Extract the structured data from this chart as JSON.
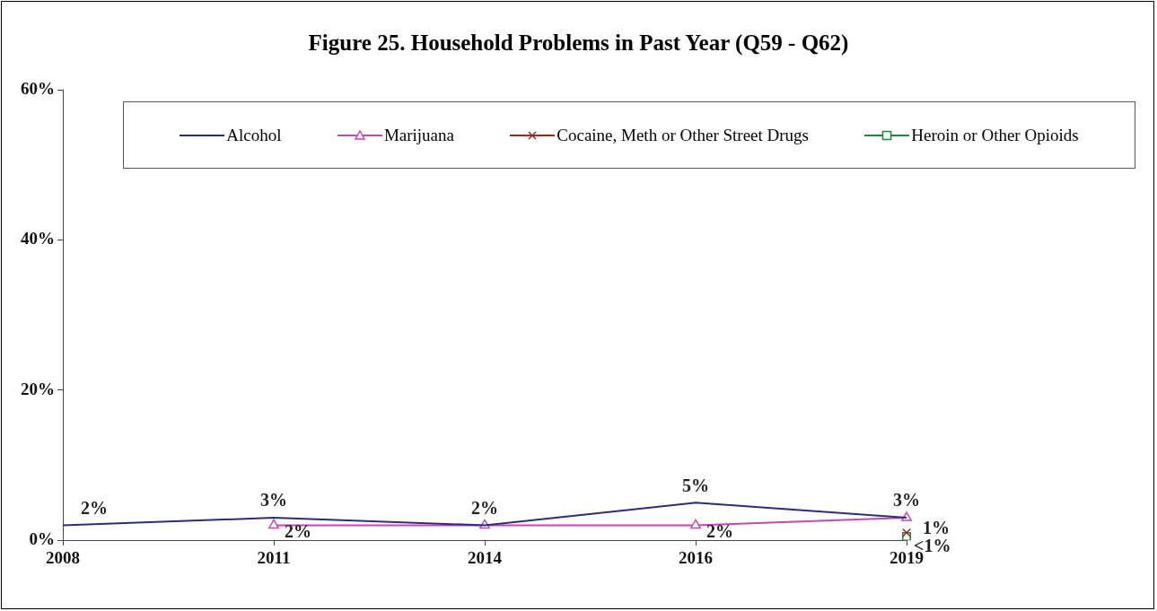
{
  "chart_data": {
    "type": "line",
    "title": "Figure 25. Household Problems in Past Year (Q59 - Q62)",
    "categories": [
      "2008",
      "2011",
      "2014",
      "2016",
      "2019"
    ],
    "ylim": [
      0,
      60
    ],
    "yticks": [
      {
        "value": 0,
        "label": "0%"
      },
      {
        "value": 20,
        "label": "20%"
      },
      {
        "value": 40,
        "label": "40%"
      },
      {
        "value": 60,
        "label": "60%"
      }
    ],
    "grid": false,
    "legend": "top",
    "series": [
      {
        "name": "Alcohol",
        "color": "#2b2d7c",
        "marker": "none",
        "values": [
          2,
          3,
          2,
          5,
          3
        ],
        "value_labels": [
          "2%",
          "3%",
          "2%",
          "5%",
          "3%"
        ]
      },
      {
        "name": "Marijuana",
        "color": "#c04ab0",
        "marker": "triangle",
        "values": [
          null,
          2,
          2,
          2,
          3
        ],
        "value_labels": [
          null,
          "2%",
          null,
          "2%",
          null
        ]
      },
      {
        "name": "Cocaine, Meth or Other Street Drugs",
        "color": "#a02818",
        "marker": "cross",
        "values": [
          null,
          null,
          null,
          null,
          1
        ],
        "value_labels": [
          null,
          null,
          null,
          null,
          "1%"
        ]
      },
      {
        "name": "Heroin or Other Opioids",
        "color": "#1a8a3a",
        "marker": "square",
        "values": [
          null,
          null,
          null,
          null,
          0.5
        ],
        "value_labels": [
          null,
          null,
          null,
          null,
          "<1%"
        ]
      }
    ]
  }
}
